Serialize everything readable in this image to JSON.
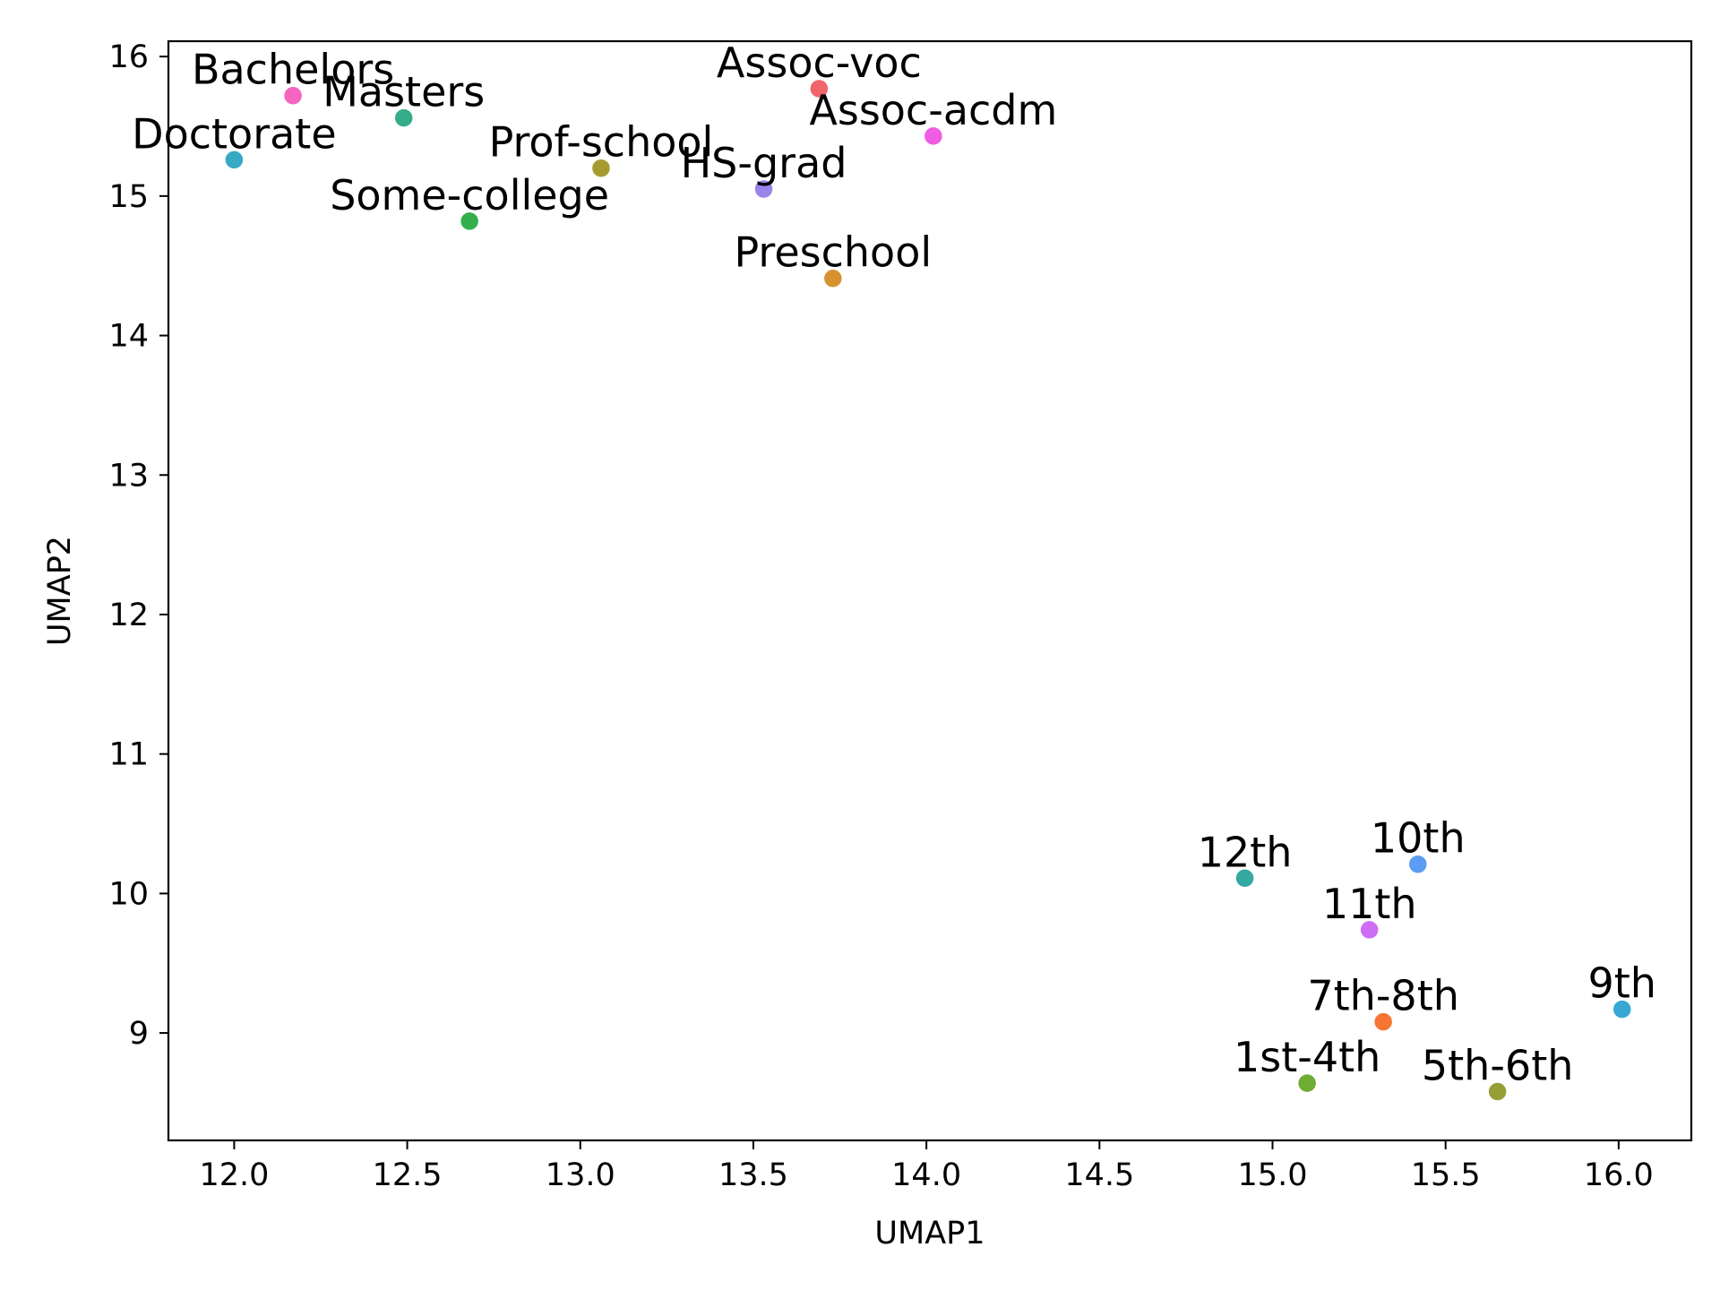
{
  "chart_data": {
    "type": "scatter",
    "title": "",
    "xlabel": "UMAP1",
    "ylabel": "UMAP2",
    "xlim": [
      11.81,
      16.21
    ],
    "ylim": [
      8.23,
      16.11
    ],
    "xticks": [
      "12.0",
      "12.5",
      "13.0",
      "13.5",
      "14.0",
      "14.5",
      "15.0",
      "15.5",
      "16.0"
    ],
    "yticks": [
      "9",
      "10",
      "11",
      "12",
      "13",
      "14",
      "15",
      "16"
    ],
    "xtick_values": [
      12.0,
      12.5,
      13.0,
      13.5,
      14.0,
      14.5,
      15.0,
      15.5,
      16.0
    ],
    "ytick_values": [
      9,
      10,
      11,
      12,
      13,
      14,
      15,
      16
    ],
    "grid": false,
    "legend": "none",
    "points": [
      {
        "label": "Bachelors",
        "x": 12.17,
        "y": 15.72,
        "color": "#f564c0"
      },
      {
        "label": "Masters",
        "x": 12.49,
        "y": 15.56,
        "color": "#36ad8a"
      },
      {
        "label": "Doctorate",
        "x": 12.0,
        "y": 15.26,
        "color": "#38a9c5"
      },
      {
        "label": "Some-college",
        "x": 12.68,
        "y": 14.82,
        "color": "#33b04b"
      },
      {
        "label": "Prof-school",
        "x": 13.06,
        "y": 15.2,
        "color": "#a69b2f"
      },
      {
        "label": "HS-grad",
        "x": 13.53,
        "y": 15.05,
        "color": "#9b84e9"
      },
      {
        "label": "Assoc-voc",
        "x": 13.69,
        "y": 15.77,
        "color": "#f1656a"
      },
      {
        "label": "Assoc-acdm",
        "x": 14.02,
        "y": 15.43,
        "color": "#ee5de2"
      },
      {
        "label": "Preschool",
        "x": 13.73,
        "y": 14.41,
        "color": "#d6922f"
      },
      {
        "label": "12th",
        "x": 14.92,
        "y": 10.11,
        "color": "#34a9a1"
      },
      {
        "label": "10th",
        "x": 15.42,
        "y": 10.21,
        "color": "#5c9cf4"
      },
      {
        "label": "11th",
        "x": 15.28,
        "y": 9.74,
        "color": "#cd6ef4"
      },
      {
        "label": "9th",
        "x": 16.01,
        "y": 9.17,
        "color": "#39a7d4"
      },
      {
        "label": "7th-8th",
        "x": 15.32,
        "y": 9.08,
        "color": "#f77633"
      },
      {
        "label": "1st-4th",
        "x": 15.1,
        "y": 8.64,
        "color": "#6fad33"
      },
      {
        "label": "5th-6th",
        "x": 15.65,
        "y": 8.58,
        "color": "#959f35"
      }
    ]
  }
}
